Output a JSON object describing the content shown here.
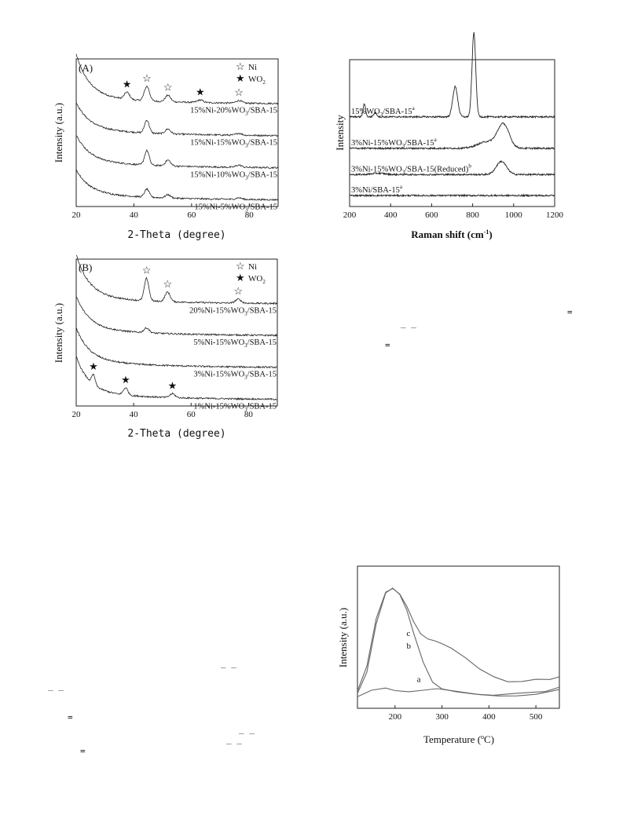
{
  "chart_data": [
    {
      "type": "line",
      "panel_label": "(A)",
      "xlabel": "2-Theta (degree)",
      "ylabel": "Intensity (a.u.)",
      "xlim": [
        20,
        90
      ],
      "x_ticks": [
        "20",
        "40",
        "60",
        "80"
      ],
      "legend": [
        {
          "marker": "open-star",
          "label": "Ni"
        },
        {
          "marker": "filled-star",
          "label": "WO",
          "sub": "2"
        }
      ],
      "legend_position": "top-right",
      "series": [
        {
          "label_pre": "15%Ni-20%WO",
          "label_sub": "3",
          "label_post": "/SBA-15",
          "offset": 3,
          "rise": 1.3,
          "peaks": [
            [
              37.6,
              0.22,
              0.9,
              "filled"
            ],
            [
              44.5,
              0.45,
              0.9,
              "open"
            ],
            [
              51.8,
              0.2,
              0.9,
              "open"
            ],
            [
              63.0,
              0.08,
              1.0,
              "filled"
            ],
            [
              76.4,
              0.08,
              1.0,
              "open"
            ]
          ]
        },
        {
          "label_pre": "15%Ni-15%WO",
          "label_sub": "3",
          "label_post": "/SBA-15",
          "offset": 2,
          "rise": 0.8,
          "peaks": [
            [
              44.5,
              0.4,
              0.8,
              "none"
            ],
            [
              51.8,
              0.15,
              0.9,
              "none"
            ],
            [
              76.4,
              0.06,
              1.0,
              "none"
            ]
          ]
        },
        {
          "label_pre": "15%Ni-10%WO",
          "label_sub": "3",
          "label_post": "/SBA-15",
          "offset": 1,
          "rise": 0.8,
          "peaks": [
            [
              44.5,
              0.45,
              0.8,
              "none"
            ],
            [
              51.8,
              0.18,
              0.9,
              "none"
            ],
            [
              76.4,
              0.07,
              1.0,
              "none"
            ]
          ]
        },
        {
          "label_pre": "15%Ni-5%WO",
          "label_sub": "3",
          "label_post": "/SBA-15",
          "offset": 0,
          "rise": 0.7,
          "peaks": [
            [
              44.5,
              0.25,
              0.8,
              "none"
            ],
            [
              51.8,
              0.1,
              0.9,
              "none"
            ],
            [
              76.4,
              0.05,
              1.0,
              "none"
            ]
          ]
        }
      ]
    },
    {
      "type": "line",
      "xlabel_pre": "Raman shift (cm",
      "xlabel_sup": "-1",
      "xlabel_post": ")",
      "ylabel": "Intensity",
      "xlim": [
        200,
        1200
      ],
      "x_ticks": [
        "200",
        "400",
        "600",
        "800",
        "1000",
        "1200"
      ],
      "series": [
        {
          "label_pre": "15%WO",
          "label_sub": "3",
          "label_post": "/SBA-15",
          "label_sup": "a",
          "offset": 3,
          "peaks": [
            [
              272,
              0.5,
              6
            ],
            [
              325,
              0.15,
              8
            ],
            [
              715,
              1.15,
              12
            ],
            [
              806,
              3.2,
              9
            ]
          ]
        },
        {
          "label_pre": "3%Ni-15%WO",
          "label_sub": "3",
          "label_post": "/SBA-15",
          "label_sup": "a",
          "offset": 1.8,
          "peaks": [
            [
              950,
              0.9,
              28
            ],
            [
              870,
              0.25,
              45
            ]
          ]
        },
        {
          "label_pre": "3%Ni-15%WO",
          "label_sub": "3",
          "label_post": "/SBA-15(Reduced)",
          "label_sup": "b",
          "offset": 0.8,
          "peaks": [
            [
              940,
              0.5,
              25
            ],
            [
              340,
              0.05,
              30
            ]
          ]
        },
        {
          "label_pre": "3%Ni/SBA-15",
          "label_sub": "",
          "label_post": "",
          "label_sup": "a",
          "offset": 0,
          "peaks": []
        }
      ]
    },
    {
      "type": "line",
      "panel_label": "(B)",
      "xlabel": "2-Theta (degree)",
      "ylabel": "Intensity (a.u.)",
      "xlim": [
        20,
        90
      ],
      "x_ticks": [
        "20",
        "40",
        "60",
        "80"
      ],
      "legend": [
        {
          "marker": "open-star",
          "label": "Ni"
        },
        {
          "marker": "filled-star",
          "label": "WO",
          "sub": "2"
        }
      ],
      "legend_position": "top-right",
      "series": [
        {
          "label_pre": "20%Ni-15%WO",
          "label_sub": "3",
          "label_post": "/SBA-15",
          "offset": 3,
          "rise": 1.3,
          "peaks": [
            [
              44.5,
              0.7,
              0.8,
              "open"
            ],
            [
              51.8,
              0.3,
              0.9,
              "open"
            ],
            [
              76.4,
              0.12,
              1.0,
              "open"
            ]
          ]
        },
        {
          "label_pre": "5%Ni-15%WO",
          "label_sub": "3",
          "label_post": "/SBA-15",
          "offset": 2,
          "rise": 1.0,
          "peaks": [
            [
              44.5,
              0.15,
              0.9,
              "none"
            ]
          ]
        },
        {
          "label_pre": "3%Ni-15%WO",
          "label_sub": "3",
          "label_post": "/SBA-15",
          "offset": 1,
          "rise": 1.0,
          "peaks": []
        },
        {
          "label_pre": "1%Ni-15%WO",
          "label_sub": "3",
          "label_post": "/SBA-15",
          "offset": 0,
          "rise": 1.1,
          "peaks": [
            [
              26.0,
              0.3,
              0.6,
              "filled"
            ],
            [
              37.2,
              0.22,
              0.8,
              "filled"
            ],
            [
              53.5,
              0.12,
              0.9,
              "filled"
            ]
          ]
        }
      ]
    },
    {
      "type": "line",
      "xlabel_pre": "Temperature (",
      "xlabel_sup": "o",
      "xlabel_post": "C)",
      "ylabel": "Intensity (a.u.)",
      "xlim": [
        120,
        550
      ],
      "x_ticks": [
        "200",
        "300",
        "400",
        "500"
      ],
      "series": [
        {
          "name": "a",
          "x": [
            120,
            150,
            180,
            200,
            230,
            260,
            290,
            330,
            380,
            420,
            460,
            500,
            530,
            550
          ],
          "y": [
            0.1,
            0.15,
            0.17,
            0.15,
            0.14,
            0.15,
            0.16,
            0.14,
            0.11,
            0.1,
            0.1,
            0.12,
            0.14,
            0.16
          ]
        },
        {
          "name": "b",
          "x": [
            120,
            140,
            160,
            180,
            195,
            210,
            225,
            240,
            260,
            280,
            300,
            330,
            370,
            410,
            450,
            490,
            520,
            550
          ],
          "y": [
            0.12,
            0.3,
            0.7,
            0.96,
            1.0,
            0.95,
            0.82,
            0.62,
            0.38,
            0.22,
            0.16,
            0.14,
            0.12,
            0.11,
            0.12,
            0.13,
            0.14,
            0.18
          ]
        },
        {
          "name": "c",
          "x": [
            120,
            140,
            160,
            180,
            195,
            210,
            225,
            240,
            255,
            270,
            285,
            300,
            320,
            350,
            380,
            410,
            440,
            470,
            500,
            530,
            550
          ],
          "y": [
            0.14,
            0.35,
            0.75,
            0.97,
            1.0,
            0.95,
            0.85,
            0.72,
            0.62,
            0.58,
            0.56,
            0.54,
            0.5,
            0.42,
            0.33,
            0.26,
            0.22,
            0.22,
            0.24,
            0.24,
            0.26
          ]
        }
      ]
    }
  ],
  "marks": [
    {
      "text": "="
    },
    {
      "text": "_ _"
    },
    {
      "text": "="
    },
    {
      "text": "_ _"
    },
    {
      "text": "_ _"
    },
    {
      "text": "="
    },
    {
      "text": "_ _"
    },
    {
      "text": "_ _"
    },
    {
      "text": "="
    }
  ]
}
